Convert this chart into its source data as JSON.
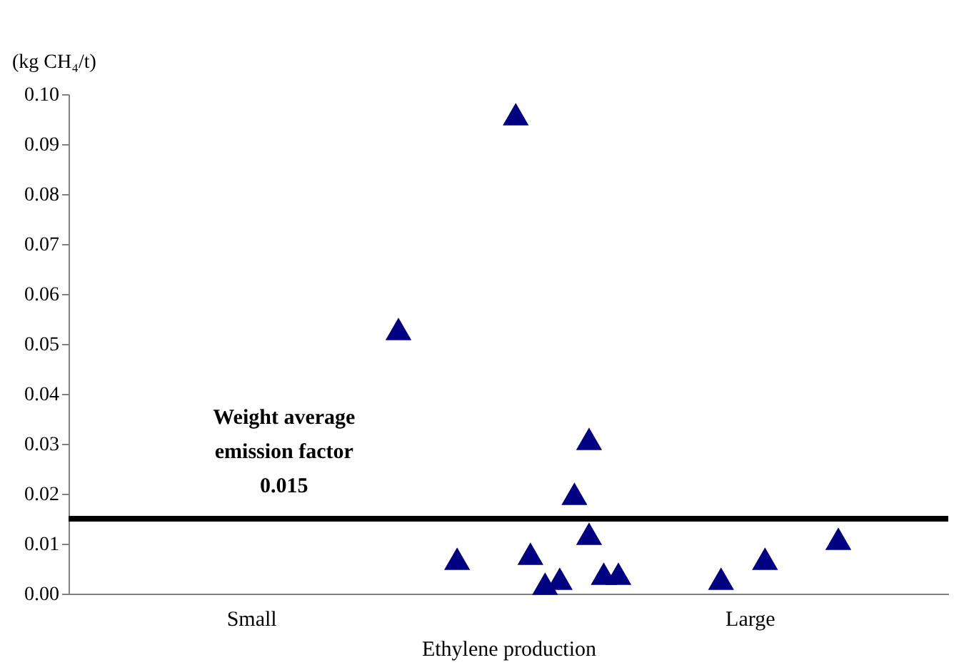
{
  "chart_data": {
    "type": "scatter",
    "xlabel": "Ethylene production",
    "ylabel": "(kg CH₄/t)",
    "categories": [
      null,
      null,
      null,
      null,
      null,
      null,
      null,
      null,
      null,
      null,
      null,
      null,
      "Small",
      null,
      null,
      null,
      null,
      null,
      null,
      null,
      null,
      null,
      null,
      null,
      null,
      null,
      null,
      null,
      null,
      null,
      null,
      null,
      null,
      null,
      null,
      null,
      null,
      null,
      null,
      null,
      null,
      null,
      null,
      null,
      null,
      null,
      "Large",
      null,
      null,
      null,
      null,
      null,
      null,
      null,
      null,
      null,
      null,
      null,
      null,
      null
    ],
    "series": [
      {
        "color": "#000080",
        "values": [
          null,
          null,
          null,
          null,
          null,
          null,
          null,
          null,
          null,
          null,
          null,
          null,
          null,
          null,
          null,
          null,
          null,
          null,
          null,
          null,
          null,
          null,
          0.053,
          null,
          null,
          null,
          0.007,
          null,
          null,
          null,
          0.096,
          0.008,
          0.002,
          0.003,
          0.02,
          0.031,
          0.004,
          0.004,
          null,
          null,
          null,
          null,
          null,
          null,
          0.003,
          null,
          null,
          0.007,
          null,
          null,
          null,
          null,
          0.011,
          null,
          null,
          null,
          null,
          null,
          null,
          null
        ]
      },
      {
        "color": "#000080",
        "values": [
          null,
          null,
          null,
          null,
          null,
          null,
          null,
          null,
          null,
          null,
          null,
          null,
          null,
          null,
          null,
          null,
          null,
          null,
          null,
          null,
          null,
          null,
          null,
          null,
          null,
          null,
          null,
          null,
          null,
          null,
          null,
          null,
          null,
          null,
          null,
          0.012,
          null,
          null,
          null,
          null,
          null,
          null,
          null,
          null,
          null,
          null,
          null,
          null,
          null,
          null,
          null,
          null,
          null,
          null,
          null,
          null,
          null,
          null,
          null,
          null
        ]
      }
    ],
    "marker": "triangle",
    "grid": false,
    "ylim": [
      0,
      0.1
    ],
    "yticks": [
      {
        "value": 0,
        "label": "0.00"
      },
      {
        "value": 0.01,
        "label": "0.01"
      },
      {
        "value": 0.02,
        "label": "0.02"
      },
      {
        "value": 0.03,
        "label": "0.03"
      },
      {
        "value": 0.04,
        "label": "0.04"
      },
      {
        "value": 0.05,
        "label": "0.05"
      },
      {
        "value": 0.06,
        "label": "0.06"
      },
      {
        "value": 0.07,
        "label": "0.07"
      },
      {
        "value": 0.08,
        "label": "0.08"
      },
      {
        "value": 0.09,
        "label": "0.09"
      },
      {
        "value": 0.1,
        "label": "0.10"
      }
    ],
    "ref_lines": [
      {
        "axis": "y",
        "value": 0.015,
        "color": "#000000"
      }
    ],
    "annotations": [
      "Weight average\nemission factor\n0.015"
    ]
  }
}
